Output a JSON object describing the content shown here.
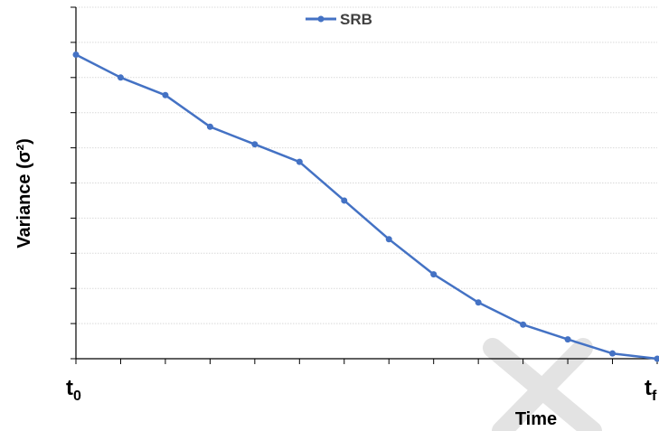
{
  "chart_data": {
    "type": "line",
    "xlabel": "Time",
    "ylabel": "Variance (σ²)",
    "x_tick_labels": {
      "start": "t0",
      "end": "tf"
    },
    "x": [
      0,
      1,
      2,
      3,
      4,
      5,
      6,
      7,
      8,
      9,
      10,
      11,
      12,
      13
    ],
    "series": [
      {
        "name": "SRB",
        "color": "#4472C4",
        "marker": "circle",
        "values": [
          8.65,
          8.0,
          7.5,
          6.6,
          6.1,
          5.6,
          4.5,
          3.4,
          2.4,
          1.6,
          0.97,
          0.55,
          0.15,
          0.0
        ]
      }
    ],
    "xlim": [
      0,
      13
    ],
    "ylim": [
      0,
      10
    ],
    "y_ticks": [
      0,
      1,
      2,
      3,
      4,
      5,
      6,
      7,
      8,
      9,
      10
    ],
    "grid": true,
    "legend_position": "top-center",
    "axis_tick_labels_shown": false
  },
  "watermark": {
    "shape": "cross",
    "color": "#e3e3e3"
  }
}
